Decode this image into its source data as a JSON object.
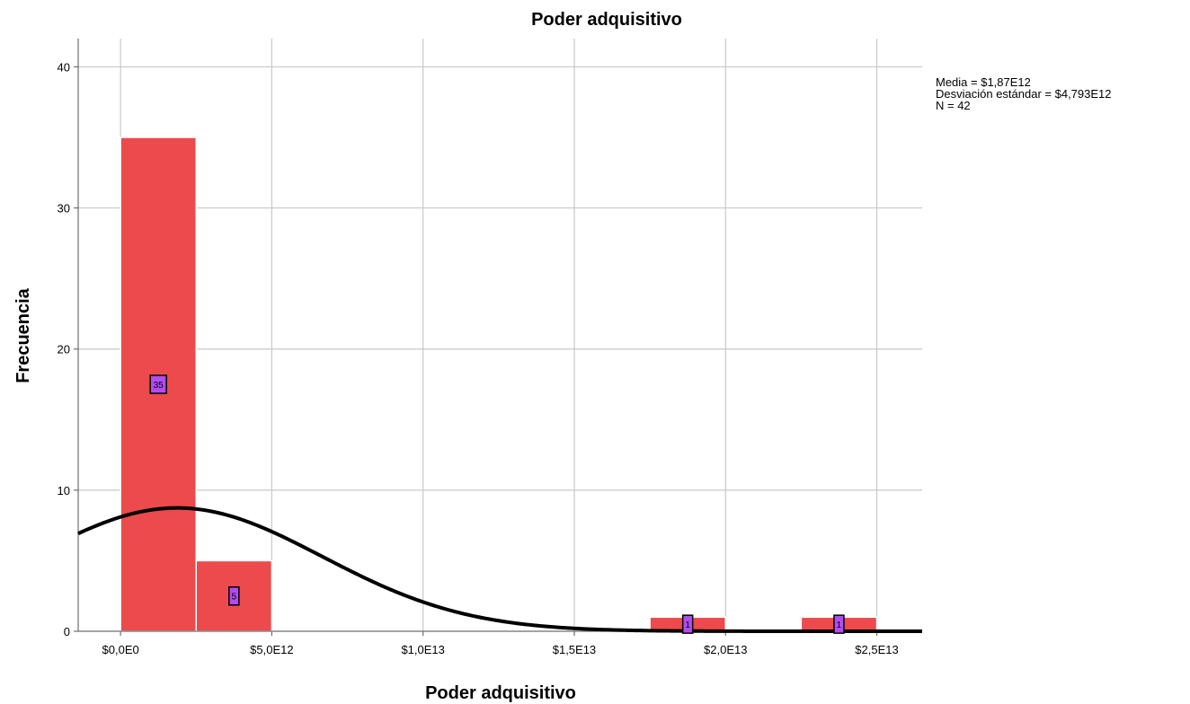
{
  "chart_data": {
    "type": "bar",
    "subtype": "histogram",
    "title": "Poder adquisitivo",
    "xlabel": "Poder adquisitivo",
    "ylabel": "Frecuencia",
    "bins": [
      {
        "start": 0.0,
        "end": 2500000000000.0,
        "count": 35,
        "label": "35"
      },
      {
        "start": 2500000000000.0,
        "end": 5000000000000.0,
        "count": 5,
        "label": "5"
      },
      {
        "start": 5000000000000.0,
        "end": 7500000000000.0,
        "count": 0
      },
      {
        "start": 7500000000000.0,
        "end": 10000000000000.0,
        "count": 0
      },
      {
        "start": 10000000000000.0,
        "end": 12500000000000.0,
        "count": 0
      },
      {
        "start": 12500000000000.0,
        "end": 15000000000000.0,
        "count": 0
      },
      {
        "start": 15000000000000.0,
        "end": 17500000000000.0,
        "count": 0
      },
      {
        "start": 17500000000000.0,
        "end": 20000000000000.0,
        "count": 1,
        "label": "1"
      },
      {
        "start": 20000000000000.0,
        "end": 22500000000000.0,
        "count": 0
      },
      {
        "start": 22500000000000.0,
        "end": 25000000000000.0,
        "count": 1,
        "label": "1"
      }
    ],
    "x_ticks": [
      {
        "value": 0.0,
        "label": "$0,0E0"
      },
      {
        "value": 5000000000000.0,
        "label": "$5,0E12"
      },
      {
        "value": 10000000000000.0,
        "label": "$1,0E13"
      },
      {
        "value": 15000000000000.0,
        "label": "$1,5E13"
      },
      {
        "value": 20000000000000.0,
        "label": "$2,0E13"
      },
      {
        "value": 25000000000000.0,
        "label": "$2,5E13"
      }
    ],
    "y_ticks": [
      {
        "value": 0,
        "label": "0"
      },
      {
        "value": 10,
        "label": "10"
      },
      {
        "value": 20,
        "label": "20"
      },
      {
        "value": 30,
        "label": "30"
      },
      {
        "value": 40,
        "label": "40"
      }
    ],
    "xlim": [
      -1400000000000.0,
      26500000000000.0
    ],
    "ylim": [
      0,
      42
    ],
    "grid": true,
    "normal_curve": {
      "mean": 1870000000000.0,
      "std": 4793000000000.0,
      "n": 42,
      "bin_width": 2500000000000.0
    },
    "stats": [
      "Media = $1,87E12",
      "Desviación estándar = $4,793E12",
      "N = 42"
    ],
    "stats_placement": "top-right, outside plot",
    "colors": {
      "bar_fill": "#EC4A4C",
      "bar_edge": "#ffffff",
      "label_box": "#B24CF2",
      "curve": "#000000",
      "grid": "#c8c8c8",
      "axis": "#6e6e6e"
    }
  }
}
